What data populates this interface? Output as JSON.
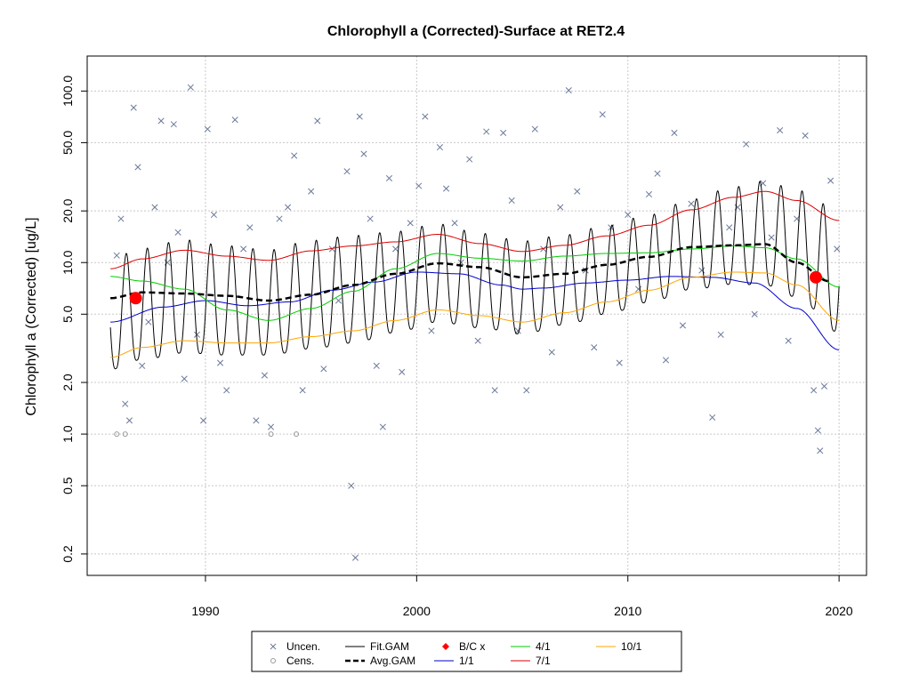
{
  "chart_data": {
    "type": "scatter",
    "title": "Chlorophyll a (Corrected)-Surface at RET2.4",
    "xlabel": "",
    "ylabel": "Chlorophyll a (Corrected) [ug/L]",
    "x_scale": "linear",
    "y_scale": "log",
    "xlim": [
      1984.4,
      2021.3
    ],
    "ylim": [
      0.15,
      160
    ],
    "x_ticks": [
      1990,
      2000,
      2010,
      2020
    ],
    "x_tick_labels": [
      "1990",
      "2000",
      "2010",
      "2020"
    ],
    "y_ticks": [
      0.2,
      0.5,
      1.0,
      2.0,
      5.0,
      10.0,
      20.0,
      50.0,
      100.0
    ],
    "y_tick_labels": [
      "0.2",
      "0.5",
      "1.0",
      "2.0",
      "5.0",
      "10.0",
      "20.0",
      "50.0",
      "100.0"
    ],
    "grid": true,
    "legend_position": "bottom-center",
    "colors": {
      "uncensored": "#6b7a99",
      "censored": "#999999",
      "fit_gam": "#000000",
      "avg_gam": "#000000",
      "bc_points": "#ff0000",
      "q1_1": "#0000cd",
      "q4_1": "#00cc00",
      "q7_1": "#dd0000",
      "q10_1": "#ffa500"
    },
    "legend": [
      {
        "label": "Uncen.",
        "kind": "cross",
        "color_key": "uncensored"
      },
      {
        "label": "Cens.",
        "kind": "circle",
        "color_key": "censored"
      },
      {
        "label": "Fit.GAM",
        "kind": "line",
        "color_key": "fit_gam"
      },
      {
        "label": "Avg.GAM",
        "kind": "dashed",
        "color_key": "avg_gam"
      },
      {
        "label": "B/C x",
        "kind": "diamond",
        "color_key": "bc_points"
      },
      {
        "label": "1/1",
        "kind": "line",
        "color_key": "q1_1"
      },
      {
        "label": "4/1",
        "kind": "line",
        "color_key": "q4_1"
      },
      {
        "label": "7/1",
        "kind": "line",
        "color_key": "q7_1"
      },
      {
        "label": "10/1",
        "kind": "line",
        "color_key": "q10_1"
      }
    ],
    "series": [
      {
        "name": "1/1",
        "x": [
          1985.5,
          1988,
          1990,
          1992,
          1994,
          1996,
          1998,
          2000,
          2002,
          2004,
          2005,
          2006,
          2008,
          2010,
          2012,
          2014,
          2016,
          2018,
          2020
        ],
        "values": [
          4.5,
          5.5,
          6.0,
          5.6,
          5.9,
          6.9,
          7.7,
          8.8,
          8.6,
          7.4,
          7.0,
          7.1,
          7.6,
          7.9,
          8.3,
          8.2,
          7.6,
          5.4,
          3.1
        ]
      },
      {
        "name": "4/1",
        "x": [
          1985.5,
          1987,
          1989,
          1991,
          1993,
          1995,
          1997,
          1999,
          2001,
          2003,
          2005,
          2007,
          2009,
          2011,
          2013,
          2015,
          2016.5,
          2018,
          2020
        ],
        "values": [
          8.3,
          7.8,
          7.0,
          5.3,
          4.6,
          5.4,
          6.8,
          9.2,
          11.3,
          10.6,
          10.2,
          10.9,
          11.3,
          11.4,
          12.0,
          12.5,
          12.2,
          10.5,
          7.2
        ]
      },
      {
        "name": "7/1",
        "x": [
          1985.5,
          1987,
          1989,
          1991,
          1993,
          1995,
          1997,
          1999,
          2001,
          2003,
          2005,
          2007,
          2009,
          2011,
          2013,
          2015,
          2016.5,
          2018,
          2020
        ],
        "values": [
          9.2,
          10.5,
          11.8,
          10.9,
          10.3,
          11.7,
          12.5,
          13.2,
          14.6,
          12.9,
          11.6,
          12.6,
          14.3,
          16.5,
          20.3,
          24.0,
          26.0,
          23.0,
          17.6
        ]
      },
      {
        "name": "10/1",
        "x": [
          1985.5,
          1987,
          1989,
          1991,
          1993,
          1995,
          1997,
          1999,
          2001,
          2003,
          2005,
          2007,
          2009,
          2011,
          2013,
          2015,
          2016.5,
          2018,
          2020
        ],
        "values": [
          2.8,
          3.2,
          3.5,
          3.4,
          3.4,
          3.7,
          4.0,
          4.6,
          5.3,
          4.9,
          4.5,
          5.1,
          5.9,
          6.9,
          8.2,
          8.8,
          8.7,
          7.4,
          4.6
        ]
      },
      {
        "name": "Avg.GAM",
        "x": [
          1985.5,
          1987,
          1989,
          1991,
          1993,
          1995,
          1997,
          1999,
          2001,
          2003,
          2005,
          2007,
          2009,
          2011,
          2013,
          2015,
          2016.5,
          2018,
          2019.5
        ],
        "values": [
          6.2,
          6.7,
          6.6,
          6.4,
          6.0,
          6.5,
          7.4,
          8.6,
          9.9,
          9.4,
          8.2,
          8.6,
          9.7,
          10.8,
          12.3,
          12.6,
          12.8,
          10.0,
          7.8
        ]
      }
    ],
    "fit_gam": {
      "x_start": 1985.5,
      "x_end": 2020.0,
      "cycles_per_year": 1,
      "description": "seasonal GAM fit oscillating between the 10/1 and 7/1 envelopes"
    },
    "bc_points": [
      {
        "x": 1986.7,
        "y": 6.2
      },
      {
        "x": 2018.9,
        "y": 8.2
      }
    ],
    "censored_points": [
      {
        "x": 1985.8,
        "y": 1.0
      },
      {
        "x": 1986.2,
        "y": 1.0
      },
      {
        "x": 1993.1,
        "y": 1.0
      },
      {
        "x": 1994.3,
        "y": 1.0
      }
    ],
    "uncensored_points": [
      {
        "x": 1985.8,
        "y": 11
      },
      {
        "x": 1986.0,
        "y": 18
      },
      {
        "x": 1986.2,
        "y": 1.5
      },
      {
        "x": 1986.4,
        "y": 1.2
      },
      {
        "x": 1986.6,
        "y": 80
      },
      {
        "x": 1986.8,
        "y": 36
      },
      {
        "x": 1987.0,
        "y": 2.5
      },
      {
        "x": 1987.3,
        "y": 4.5
      },
      {
        "x": 1987.6,
        "y": 21
      },
      {
        "x": 1987.9,
        "y": 67
      },
      {
        "x": 1988.2,
        "y": 10
      },
      {
        "x": 1988.5,
        "y": 64
      },
      {
        "x": 1988.7,
        "y": 15
      },
      {
        "x": 1989.0,
        "y": 2.1
      },
      {
        "x": 1989.3,
        "y": 105
      },
      {
        "x": 1989.6,
        "y": 3.8
      },
      {
        "x": 1989.9,
        "y": 1.2
      },
      {
        "x": 1990.1,
        "y": 60
      },
      {
        "x": 1990.4,
        "y": 19
      },
      {
        "x": 1990.7,
        "y": 2.6
      },
      {
        "x": 1991.0,
        "y": 1.8
      },
      {
        "x": 1991.4,
        "y": 68
      },
      {
        "x": 1991.8,
        "y": 12
      },
      {
        "x": 1992.1,
        "y": 16
      },
      {
        "x": 1992.4,
        "y": 1.2
      },
      {
        "x": 1992.8,
        "y": 2.2
      },
      {
        "x": 1993.1,
        "y": 1.1
      },
      {
        "x": 1993.5,
        "y": 18
      },
      {
        "x": 1993.9,
        "y": 21
      },
      {
        "x": 1994.2,
        "y": 42
      },
      {
        "x": 1994.6,
        "y": 1.8
      },
      {
        "x": 1995.0,
        "y": 26
      },
      {
        "x": 1995.3,
        "y": 67
      },
      {
        "x": 1995.6,
        "y": 2.4
      },
      {
        "x": 1996.0,
        "y": 12
      },
      {
        "x": 1996.3,
        "y": 6.0
      },
      {
        "x": 1996.7,
        "y": 34
      },
      {
        "x": 1996.9,
        "y": 0.5
      },
      {
        "x": 1997.1,
        "y": 0.19
      },
      {
        "x": 1997.3,
        "y": 71
      },
      {
        "x": 1997.5,
        "y": 43
      },
      {
        "x": 1997.8,
        "y": 18
      },
      {
        "x": 1998.1,
        "y": 2.5
      },
      {
        "x": 1998.4,
        "y": 1.1
      },
      {
        "x": 1998.7,
        "y": 31
      },
      {
        "x": 1999.0,
        "y": 12
      },
      {
        "x": 1999.3,
        "y": 2.3
      },
      {
        "x": 1999.7,
        "y": 17
      },
      {
        "x": 2000.1,
        "y": 28
      },
      {
        "x": 2000.4,
        "y": 71
      },
      {
        "x": 2000.7,
        "y": 4.0
      },
      {
        "x": 2001.1,
        "y": 47
      },
      {
        "x": 2001.4,
        "y": 27
      },
      {
        "x": 2001.8,
        "y": 17
      },
      {
        "x": 2002.1,
        "y": 10
      },
      {
        "x": 2002.5,
        "y": 40
      },
      {
        "x": 2002.9,
        "y": 3.5
      },
      {
        "x": 2003.3,
        "y": 58
      },
      {
        "x": 2003.7,
        "y": 1.8
      },
      {
        "x": 2004.1,
        "y": 57
      },
      {
        "x": 2004.5,
        "y": 23
      },
      {
        "x": 2004.8,
        "y": 4.0
      },
      {
        "x": 2005.2,
        "y": 1.8
      },
      {
        "x": 2005.6,
        "y": 60
      },
      {
        "x": 2006.0,
        "y": 12
      },
      {
        "x": 2006.4,
        "y": 3.0
      },
      {
        "x": 2006.8,
        "y": 21
      },
      {
        "x": 2007.2,
        "y": 101
      },
      {
        "x": 2007.6,
        "y": 26
      },
      {
        "x": 2008.0,
        "y": 9.0
      },
      {
        "x": 2008.4,
        "y": 3.2
      },
      {
        "x": 2008.8,
        "y": 73
      },
      {
        "x": 2009.2,
        "y": 16
      },
      {
        "x": 2009.6,
        "y": 2.6
      },
      {
        "x": 2010.0,
        "y": 19
      },
      {
        "x": 2010.5,
        "y": 7.0
      },
      {
        "x": 2011.0,
        "y": 25
      },
      {
        "x": 2011.4,
        "y": 33
      },
      {
        "x": 2011.8,
        "y": 2.7
      },
      {
        "x": 2012.2,
        "y": 57
      },
      {
        "x": 2012.6,
        "y": 4.3
      },
      {
        "x": 2013.0,
        "y": 22
      },
      {
        "x": 2013.5,
        "y": 9.0
      },
      {
        "x": 2014.0,
        "y": 1.25
      },
      {
        "x": 2014.4,
        "y": 3.8
      },
      {
        "x": 2014.8,
        "y": 16
      },
      {
        "x": 2015.2,
        "y": 21
      },
      {
        "x": 2015.6,
        "y": 49
      },
      {
        "x": 2016.0,
        "y": 5.0
      },
      {
        "x": 2016.4,
        "y": 29
      },
      {
        "x": 2016.8,
        "y": 14
      },
      {
        "x": 2017.2,
        "y": 59
      },
      {
        "x": 2017.6,
        "y": 3.5
      },
      {
        "x": 2018.0,
        "y": 18
      },
      {
        "x": 2018.4,
        "y": 55
      },
      {
        "x": 2018.8,
        "y": 1.8
      },
      {
        "x": 2019.0,
        "y": 1.05
      },
      {
        "x": 2019.1,
        "y": 0.8
      },
      {
        "x": 2019.3,
        "y": 1.9
      },
      {
        "x": 2019.6,
        "y": 30
      },
      {
        "x": 2019.9,
        "y": 12
      }
    ]
  }
}
